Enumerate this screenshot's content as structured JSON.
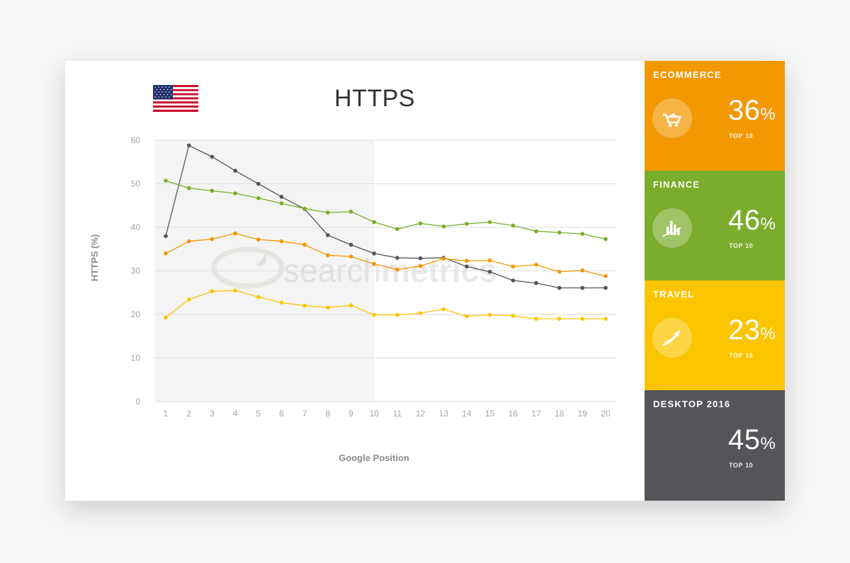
{
  "colors": {
    "ecommerce": "#f39800",
    "finance": "#7aad2b",
    "travel": "#fcc500",
    "desktop": "#555458",
    "grid": "#dedede",
    "shade": "#f4f4f4",
    "axis_text": "#a6a6a6"
  },
  "flag": {
    "icon": "us-flag-icon"
  },
  "watermark": {
    "text_light": "search",
    "text_bold": "metrics"
  },
  "chart_data": {
    "type": "line",
    "title": "HTTPS",
    "xlabel": "Google Position",
    "ylabel": "HTTPS (%)",
    "ylim": [
      0,
      60
    ],
    "yticks": [
      "0",
      "10",
      "20",
      "30",
      "40",
      "50",
      "60"
    ],
    "categories": [
      "1",
      "2",
      "3",
      "4",
      "5",
      "6",
      "7",
      "8",
      "9",
      "10",
      "11",
      "12",
      "13",
      "14",
      "15",
      "16",
      "17",
      "18",
      "19",
      "20"
    ],
    "shaded_range": [
      "1",
      "10"
    ],
    "grid": "horizontal",
    "series": [
      {
        "key": "desktop",
        "color": "#555458",
        "values": [
          38,
          58.8,
          56.2,
          53,
          50,
          47,
          44.2,
          38.2,
          36,
          34,
          33,
          32.9,
          33,
          31,
          29.8,
          27.8,
          27.2,
          26.1,
          26.1,
          26.1
        ]
      },
      {
        "key": "finance",
        "color": "#7aad2b",
        "values": [
          50.7,
          49,
          48.4,
          47.8,
          46.7,
          45.5,
          44.3,
          43.4,
          43.6,
          41.2,
          39.6,
          40.9,
          40.2,
          40.8,
          41.2,
          40.4,
          39.1,
          38.8,
          38.5,
          37.3
        ]
      },
      {
        "key": "ecommerce",
        "color": "#f39800",
        "values": [
          34,
          36.8,
          37.3,
          38.6,
          37.2,
          36.8,
          36,
          33.6,
          33.3,
          31.6,
          30.3,
          31.1,
          32.8,
          32.3,
          32.4,
          31,
          31.4,
          29.8,
          30.1,
          28.8
        ]
      },
      {
        "key": "travel",
        "color": "#fcc500",
        "values": [
          19.3,
          23.4,
          25.3,
          25.5,
          24,
          22.7,
          22,
          21.6,
          22.1,
          19.9,
          19.9,
          20.3,
          21.2,
          19.6,
          19.9,
          19.7,
          19,
          19,
          19,
          19
        ]
      }
    ]
  },
  "sidebar": {
    "panels": [
      {
        "label": "ECOMMERCE",
        "value": "36",
        "unit": "%",
        "sub": "TOP 10",
        "icon": "shopping-cart-icon",
        "color": "#f39800"
      },
      {
        "label": "FINANCE",
        "value": "46",
        "unit": "%",
        "sub": "TOP 10",
        "icon": "bar-chart-icon",
        "color": "#7aad2b"
      },
      {
        "label": "TRAVEL",
        "value": "23",
        "unit": "%",
        "sub": "TOP 10",
        "icon": "airplane-icon",
        "color": "#fcc500"
      },
      {
        "label": "DESKTOP 2016",
        "value": "45",
        "unit": "%",
        "sub": "TOP 10",
        "icon": "",
        "color": "#555458"
      }
    ]
  }
}
